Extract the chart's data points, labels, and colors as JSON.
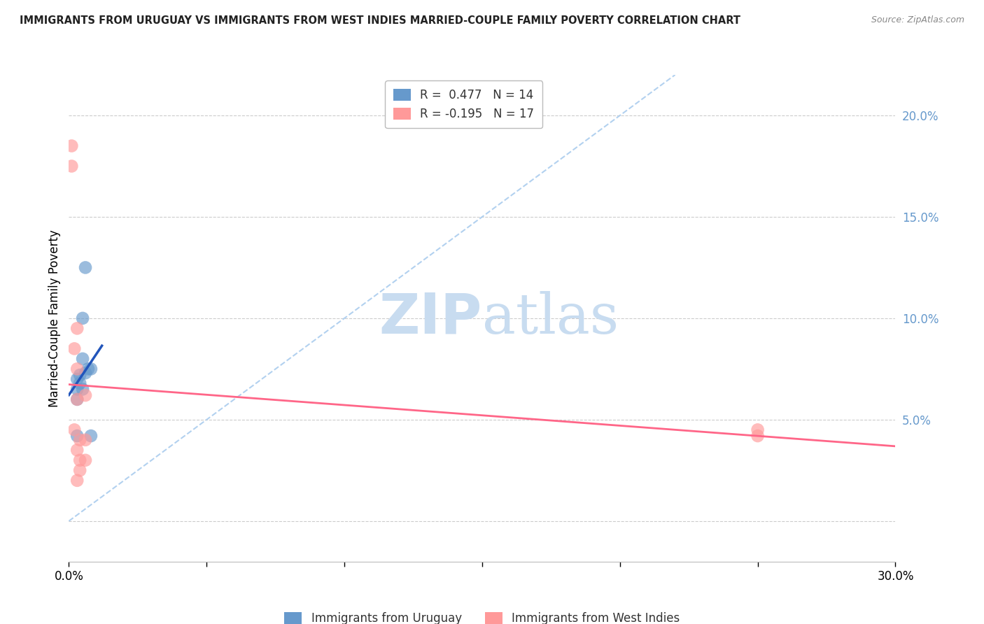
{
  "title": "IMMIGRANTS FROM URUGUAY VS IMMIGRANTS FROM WEST INDIES MARRIED-COUPLE FAMILY POVERTY CORRELATION CHART",
  "source": "Source: ZipAtlas.com",
  "ylabel": "Married-Couple Family Poverty",
  "xlim": [
    0.0,
    0.3
  ],
  "ylim": [
    -0.02,
    0.22
  ],
  "xticks": [
    0.0,
    0.05,
    0.1,
    0.15,
    0.2,
    0.25,
    0.3
  ],
  "xtick_labels": [
    "0.0%",
    "",
    "",
    "",
    "",
    "",
    "30.0%"
  ],
  "yticks": [
    0.0,
    0.05,
    0.1,
    0.15,
    0.2
  ],
  "ytick_labels": [
    "",
    "5.0%",
    "10.0%",
    "15.0%",
    "20.0%"
  ],
  "legend_r_uruguay": "R =  0.477",
  "legend_n_uruguay": "N = 14",
  "legend_r_westindies": "R = -0.195",
  "legend_n_westindies": "N = 17",
  "color_uruguay": "#6699CC",
  "color_westindies": "#FF9999",
  "trendline_color_uruguay": "#2255BB",
  "trendline_color_westindies": "#FF6688",
  "diagonal_color": "#AACCEE",
  "watermark_zip": "ZIP",
  "watermark_atlas": "atlas",
  "watermark_color": "#C8DCF0",
  "uruguay_x": [
    0.003,
    0.003,
    0.003,
    0.004,
    0.004,
    0.005,
    0.005,
    0.005,
    0.006,
    0.006,
    0.007,
    0.008,
    0.008,
    0.003
  ],
  "uruguay_y": [
    0.07,
    0.065,
    0.06,
    0.072,
    0.068,
    0.1,
    0.08,
    0.065,
    0.125,
    0.073,
    0.075,
    0.075,
    0.042,
    0.042
  ],
  "westindies_x": [
    0.001,
    0.001,
    0.002,
    0.002,
    0.003,
    0.003,
    0.003,
    0.003,
    0.004,
    0.004,
    0.004,
    0.006,
    0.006,
    0.006,
    0.25,
    0.25,
    0.003
  ],
  "westindies_y": [
    0.185,
    0.175,
    0.085,
    0.045,
    0.095,
    0.075,
    0.035,
    0.02,
    0.03,
    0.04,
    0.025,
    0.062,
    0.04,
    0.03,
    0.045,
    0.042,
    0.06
  ],
  "background_color": "#FFFFFF",
  "grid_color": "#CCCCCC",
  "title_color": "#222222",
  "axis_tick_color": "#6699CC"
}
